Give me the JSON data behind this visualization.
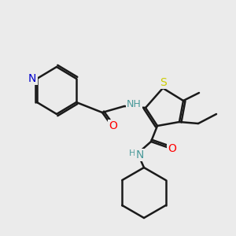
{
  "bg_color": "#ebebeb",
  "bond_color": "#1a1a1a",
  "bond_lw": 1.8,
  "font_size": 9,
  "colors": {
    "N": "#0000cc",
    "O": "#ff0000",
    "S": "#cccc00",
    "C": "#1a1a1a",
    "NH": "#4a9a9a"
  }
}
